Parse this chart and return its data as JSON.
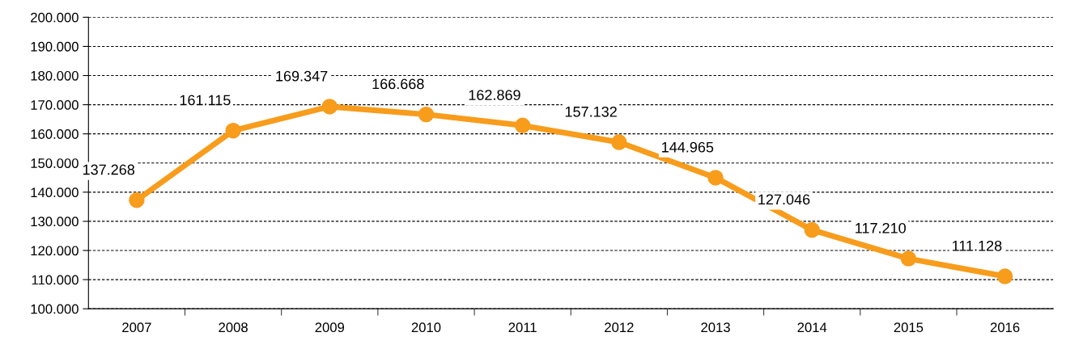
{
  "chart_data": {
    "type": "line",
    "categories": [
      "2007",
      "2008",
      "2009",
      "2010",
      "2011",
      "2012",
      "2013",
      "2014",
      "2015",
      "2016"
    ],
    "series": [
      {
        "color": "#f89c1c",
        "values": [
          137268,
          161115,
          169347,
          166668,
          162869,
          157132,
          144965,
          127046,
          117210,
          111128
        ],
        "value_labels": [
          "137.268",
          "161.115",
          "169.347",
          "166.668",
          "162.869",
          "157.132",
          "144.965",
          "127.046",
          "117.210",
          "111.128"
        ]
      }
    ],
    "ylim": [
      100000,
      200000
    ],
    "yticks": [
      {
        "value": 100000,
        "label": "100.000"
      },
      {
        "value": 110000,
        "label": "110.000"
      },
      {
        "value": 120000,
        "label": "120.000"
      },
      {
        "value": 130000,
        "label": "130.000"
      },
      {
        "value": 140000,
        "label": "140.000"
      },
      {
        "value": 150000,
        "label": "150.000"
      },
      {
        "value": 160000,
        "label": "160.000"
      },
      {
        "value": 170000,
        "label": "170.000"
      },
      {
        "value": 180000,
        "label": "180.000"
      },
      {
        "value": 190000,
        "label": "190.000"
      },
      {
        "value": 200000,
        "label": "200.000"
      }
    ],
    "grid": "y",
    "marker": "circle",
    "line_style": "solid"
  }
}
